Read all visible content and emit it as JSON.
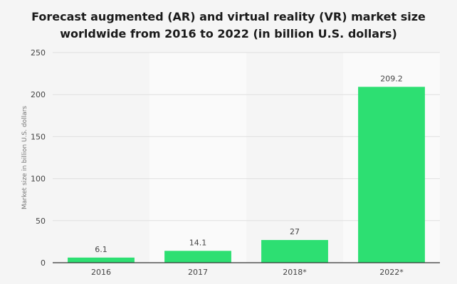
{
  "title_line1": "Forecast augmented (AR) and virtual reality (VR) market size",
  "title_line2": "worldwide from 2016 to 2022 (in billion U.S. dollars)",
  "colors": {
    "bar": "#2ddf72",
    "background": "#f5f5f5",
    "band": "#fafafa",
    "grid": "#e0e0e0",
    "axis": "#333333",
    "text": "#444444"
  },
  "chart_data": {
    "type": "bar",
    "categories": [
      "2016",
      "2017",
      "2018*",
      "2022*"
    ],
    "values": [
      6.1,
      14.1,
      27,
      209.2
    ],
    "value_labels": [
      "6.1",
      "14.1",
      "27",
      "209.2"
    ],
    "xlabel": "",
    "ylabel": "Market size in billion U.S. dollars",
    "ylim": [
      0,
      250
    ],
    "yticks": [
      0,
      50,
      100,
      150,
      200,
      250
    ],
    "grid": true,
    "legend": "none"
  }
}
